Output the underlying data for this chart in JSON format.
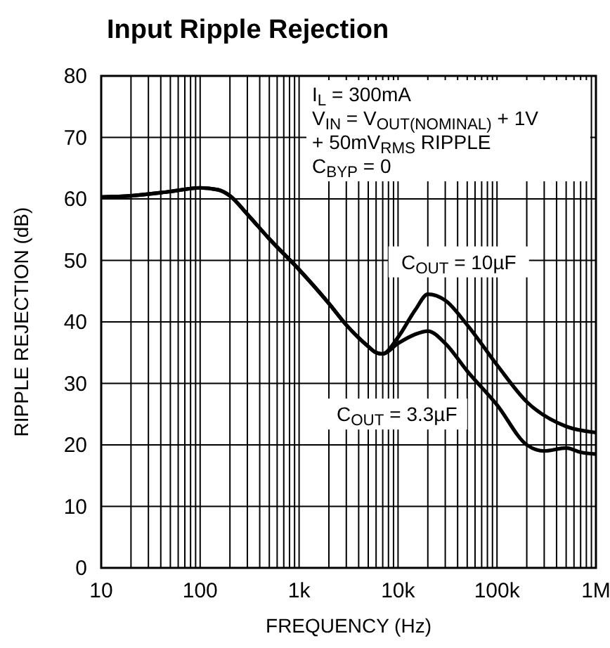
{
  "chart_data": {
    "type": "line",
    "title": "Input Ripple Rejection",
    "xlabel": "FREQUENCY (Hz)",
    "ylabel": "RIPPLE REJECTION (dB)",
    "log": "x",
    "grid": true,
    "line_style": "solid",
    "xlim": [
      10,
      1000000
    ],
    "ylim": [
      0,
      80
    ],
    "xticks": [
      {
        "value": 10,
        "label": "10"
      },
      {
        "value": 20,
        "label": null
      },
      {
        "value": 30,
        "label": null
      },
      {
        "value": 40,
        "label": null
      },
      {
        "value": 50,
        "label": null
      },
      {
        "value": 60,
        "label": null
      },
      {
        "value": 70,
        "label": null
      },
      {
        "value": 80,
        "label": null
      },
      {
        "value": 90,
        "label": null
      },
      {
        "value": 100,
        "label": "100"
      },
      {
        "value": 200,
        "label": null
      },
      {
        "value": 300,
        "label": null
      },
      {
        "value": 400,
        "label": null
      },
      {
        "value": 500,
        "label": null
      },
      {
        "value": 600,
        "label": null
      },
      {
        "value": 700,
        "label": null
      },
      {
        "value": 800,
        "label": null
      },
      {
        "value": 900,
        "label": null
      },
      {
        "value": 1000,
        "label": "1k"
      },
      {
        "value": 2000,
        "label": null
      },
      {
        "value": 3000,
        "label": null
      },
      {
        "value": 4000,
        "label": null
      },
      {
        "value": 5000,
        "label": null
      },
      {
        "value": 6000,
        "label": null
      },
      {
        "value": 7000,
        "label": null
      },
      {
        "value": 8000,
        "label": null
      },
      {
        "value": 9000,
        "label": null
      },
      {
        "value": 10000,
        "label": "10k"
      },
      {
        "value": 20000,
        "label": null
      },
      {
        "value": 30000,
        "label": null
      },
      {
        "value": 40000,
        "label": null
      },
      {
        "value": 50000,
        "label": null
      },
      {
        "value": 60000,
        "label": null
      },
      {
        "value": 70000,
        "label": null
      },
      {
        "value": 80000,
        "label": null
      },
      {
        "value": 90000,
        "label": null
      },
      {
        "value": 100000,
        "label": "100k"
      },
      {
        "value": 200000,
        "label": null
      },
      {
        "value": 300000,
        "label": null
      },
      {
        "value": 400000,
        "label": null
      },
      {
        "value": 500000,
        "label": null
      },
      {
        "value": 600000,
        "label": null
      },
      {
        "value": 700000,
        "label": null
      },
      {
        "value": 800000,
        "label": null
      },
      {
        "value": 900000,
        "label": null
      },
      {
        "value": 1000000,
        "label": "1M"
      }
    ],
    "yticks": [
      0,
      10,
      20,
      30,
      40,
      50,
      60,
      70,
      80
    ],
    "annotations": [
      "I$_{L}$ = 300mA",
      "V$_{IN}$ = V$_{OUT(NOMINAL)}$ + 1V",
      "+ 50mV$_{RMS}$ RIPPLE",
      "C$_{BYP}$ = 0"
    ],
    "series": [
      {
        "name": "C$_{OUT}$ = 10µF",
        "color": "#000000",
        "x": [
          10,
          20,
          50,
          100,
          150,
          200,
          300,
          500,
          1000,
          2000,
          3000,
          5000,
          6000,
          7000,
          10000,
          15000,
          20000,
          30000,
          50000,
          100000,
          200000,
          500000,
          1000000
        ],
        "values": [
          60.3,
          60.5,
          61.2,
          61.8,
          61.5,
          60.5,
          57.5,
          53.5,
          48.5,
          43,
          39.5,
          36,
          35,
          34.8,
          37.5,
          42,
          44.5,
          43.5,
          39.5,
          33,
          27,
          23,
          22
        ]
      },
      {
        "name": "C$_{OUT}$ = 3.3µF",
        "color": "#000000",
        "x": [
          10,
          20,
          50,
          100,
          150,
          200,
          300,
          500,
          1000,
          2000,
          3000,
          5000,
          6000,
          7000,
          10000,
          15000,
          20000,
          30000,
          50000,
          100000,
          200000,
          300000,
          500000,
          700000,
          1000000
        ],
        "values": [
          60.3,
          60.5,
          61.2,
          61.8,
          61.5,
          60.5,
          57.5,
          53.5,
          48.5,
          43,
          39.5,
          36,
          35,
          34.8,
          36.5,
          38,
          38.5,
          36.5,
          32,
          26.5,
          20,
          19,
          19.5,
          18.8,
          18.5
        ]
      }
    ]
  }
}
